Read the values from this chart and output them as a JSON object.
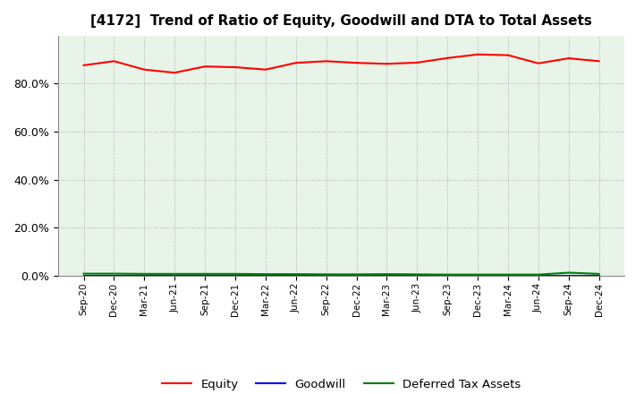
{
  "title": "[4172]  Trend of Ratio of Equity, Goodwill and DTA to Total Assets",
  "x_labels": [
    "Sep-20",
    "Dec-20",
    "Mar-21",
    "Jun-21",
    "Sep-21",
    "Dec-21",
    "Mar-22",
    "Jun-22",
    "Sep-22",
    "Dec-22",
    "Mar-23",
    "Jun-23",
    "Sep-23",
    "Dec-23",
    "Mar-24",
    "Jun-24",
    "Sep-24",
    "Dec-24"
  ],
  "equity": [
    0.876,
    0.893,
    0.858,
    0.845,
    0.871,
    0.868,
    0.858,
    0.886,
    0.893,
    0.886,
    0.882,
    0.887,
    0.906,
    0.921,
    0.918,
    0.884,
    0.905,
    0.893
  ],
  "goodwill": [
    0.0,
    0.0,
    0.0,
    0.0,
    0.0,
    0.0,
    0.0,
    0.0,
    0.0,
    0.0,
    0.0,
    0.0,
    0.0,
    0.0,
    0.0,
    0.0,
    0.0,
    0.0
  ],
  "dta": [
    0.009,
    0.009,
    0.008,
    0.008,
    0.008,
    0.008,
    0.007,
    0.007,
    0.006,
    0.006,
    0.007,
    0.006,
    0.005,
    0.005,
    0.005,
    0.005,
    0.013,
    0.008
  ],
  "equity_color": "#ff0000",
  "goodwill_color": "#0000ff",
  "dta_color": "#008000",
  "bg_color": "#ffffff",
  "plot_bg_color": "#e8f4e8",
  "grid_color": "#aaaaaa",
  "ylim": [
    0.0,
    1.0
  ],
  "yticks": [
    0.0,
    0.2,
    0.4,
    0.6,
    0.8
  ],
  "title_fontsize": 11,
  "legend_labels": [
    "Equity",
    "Goodwill",
    "Deferred Tax Assets"
  ]
}
